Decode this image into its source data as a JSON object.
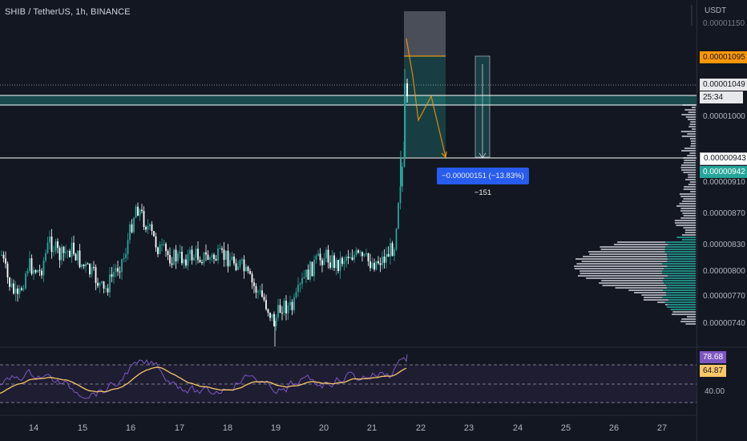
{
  "symbol": {
    "title": "SHIB / TetherUS, 1h, BINANCE"
  },
  "price_axis": {
    "currency": "USDT",
    "ticks": [
      "0.00001150",
      "0.00001000",
      "0.00000910",
      "0.00000870",
      "0.00000830",
      "0.00000800",
      "0.00000770",
      "0.00000740"
    ],
    "tags": {
      "target": "0.00001095",
      "last_price": "0.00001049",
      "countdown": "25:34",
      "line": "0.00000943",
      "current": "0.00000942"
    }
  },
  "rsi": {
    "value": "78.68",
    "ma_value": "64.87",
    "level": "40.00"
  },
  "time_axis": {
    "labels": [
      "14",
      "15",
      "16",
      "17",
      "18",
      "19",
      "20",
      "21",
      "22",
      "23",
      "24",
      "25",
      "26",
      "27"
    ]
  },
  "measure": {
    "label": "−0.00000151 (−13.83%) −151"
  },
  "colors": {
    "background": "#131722",
    "up": "#26a69a",
    "down": "#ffffff",
    "target_tag": "#ff9800",
    "rsi": "#7e57c2",
    "rsi_ma": "#f7c66a",
    "measure": "#2962ff"
  }
}
